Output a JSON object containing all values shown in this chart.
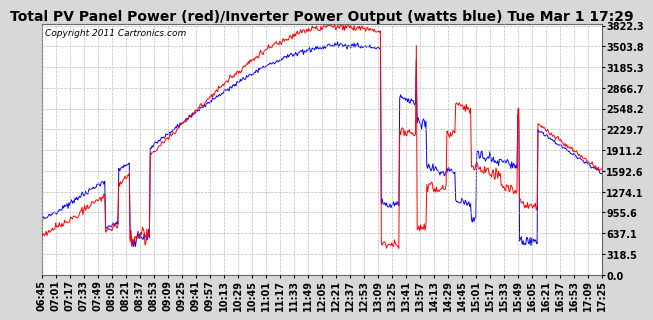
{
  "title": "Total PV Panel Power (red)/Inverter Power Output (watts blue) Tue Mar 1 17:29",
  "copyright": "Copyright 2011 Cartronics.com",
  "yticks": [
    0.0,
    318.5,
    637.1,
    955.6,
    1274.1,
    1592.6,
    1911.2,
    2229.7,
    2548.2,
    2866.7,
    3185.3,
    3503.8,
    3822.3
  ],
  "ymax": 3822.3,
  "ymin": 0.0,
  "xtick_labels": [
    "06:45",
    "07:01",
    "07:17",
    "07:33",
    "07:49",
    "08:05",
    "08:21",
    "08:37",
    "08:53",
    "09:09",
    "09:25",
    "09:41",
    "09:57",
    "10:13",
    "10:29",
    "10:45",
    "11:01",
    "11:17",
    "11:33",
    "11:49",
    "12:05",
    "12:21",
    "12:37",
    "12:53",
    "13:09",
    "13:25",
    "13:41",
    "13:57",
    "14:13",
    "14:29",
    "14:45",
    "15:01",
    "15:17",
    "15:33",
    "15:49",
    "16:05",
    "16:21",
    "16:37",
    "16:53",
    "17:09",
    "17:25"
  ],
  "background_color": "#d8d8d8",
  "plot_bg_color": "#ffffff",
  "grid_color": "#bbbbbb",
  "line_red": "#ff0000",
  "line_blue": "#0000ff",
  "title_fontsize": 10,
  "tick_fontsize": 7,
  "copyright_fontsize": 6.5
}
